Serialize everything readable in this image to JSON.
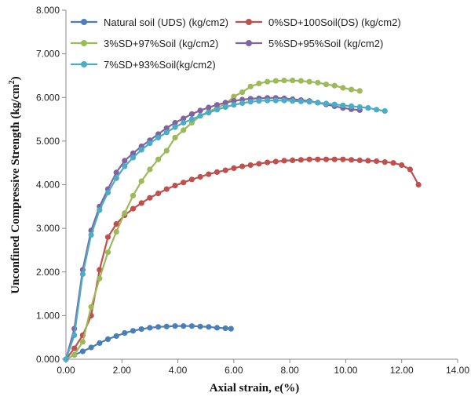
{
  "chart_data": {
    "type": "line",
    "title": "",
    "xlabel": "Axial strain, e(%)",
    "ylabel": "Unconfined Compressive Strength (kg/cm",
    "ylabel_sup": "2",
    "ylabel_end": ")",
    "xlim": [
      0,
      14
    ],
    "ylim": [
      0,
      8
    ],
    "x_ticks": [
      "0.00",
      "2.00",
      "4.00",
      "6.00",
      "8.00",
      "10.00",
      "12.00",
      "14.00"
    ],
    "y_ticks": [
      "0.000",
      "1.000",
      "2.000",
      "3.000",
      "4.000",
      "5.000",
      "6.000",
      "7.000",
      "8.000"
    ],
    "grid": false,
    "legend_position": "top",
    "series": [
      {
        "name": "Natural soil (UDS)  (kg/cm2)",
        "color": "#4a7ebb",
        "points": [
          [
            0,
            0
          ],
          [
            0.3,
            0.1
          ],
          [
            0.6,
            0.18
          ],
          [
            0.9,
            0.27
          ],
          [
            1.2,
            0.37
          ],
          [
            1.5,
            0.46
          ],
          [
            1.8,
            0.53
          ],
          [
            2.1,
            0.6
          ],
          [
            2.4,
            0.65
          ],
          [
            2.7,
            0.69
          ],
          [
            3.0,
            0.72
          ],
          [
            3.3,
            0.74
          ],
          [
            3.6,
            0.75
          ],
          [
            3.9,
            0.76
          ],
          [
            4.2,
            0.76
          ],
          [
            4.5,
            0.76
          ],
          [
            4.8,
            0.75
          ],
          [
            5.1,
            0.74
          ],
          [
            5.4,
            0.72
          ],
          [
            5.7,
            0.71
          ],
          [
            5.9,
            0.7
          ]
        ]
      },
      {
        "name": "0%SD+100Soil(DS) (kg/cm2)",
        "color": "#c0504d",
        "points": [
          [
            0,
            0
          ],
          [
            0.3,
            0.25
          ],
          [
            0.6,
            0.55
          ],
          [
            0.9,
            1.0
          ],
          [
            1.2,
            2.05
          ],
          [
            1.5,
            2.8
          ],
          [
            1.8,
            3.1
          ],
          [
            2.1,
            3.3
          ],
          [
            2.4,
            3.45
          ],
          [
            2.7,
            3.58
          ],
          [
            3.0,
            3.7
          ],
          [
            3.3,
            3.8
          ],
          [
            3.6,
            3.9
          ],
          [
            3.9,
            3.98
          ],
          [
            4.2,
            4.05
          ],
          [
            4.5,
            4.12
          ],
          [
            4.8,
            4.18
          ],
          [
            5.1,
            4.24
          ],
          [
            5.4,
            4.29
          ],
          [
            5.7,
            4.33
          ],
          [
            6.0,
            4.38
          ],
          [
            6.3,
            4.42
          ],
          [
            6.6,
            4.45
          ],
          [
            6.9,
            4.48
          ],
          [
            7.2,
            4.51
          ],
          [
            7.5,
            4.53
          ],
          [
            7.8,
            4.55
          ],
          [
            8.1,
            4.56
          ],
          [
            8.4,
            4.57
          ],
          [
            8.7,
            4.58
          ],
          [
            9.0,
            4.58
          ],
          [
            9.3,
            4.58
          ],
          [
            9.6,
            4.58
          ],
          [
            9.9,
            4.58
          ],
          [
            10.2,
            4.57
          ],
          [
            10.5,
            4.56
          ],
          [
            10.8,
            4.55
          ],
          [
            11.1,
            4.54
          ],
          [
            11.4,
            4.52
          ],
          [
            11.7,
            4.5
          ],
          [
            12.0,
            4.45
          ],
          [
            12.3,
            4.35
          ],
          [
            12.6,
            4.0
          ]
        ]
      },
      {
        "name": "3%SD+97%Soil (kg/cm2)",
        "color": "#9bbb59",
        "points": [
          [
            0,
            0
          ],
          [
            0.3,
            0.1
          ],
          [
            0.6,
            0.4
          ],
          [
            0.9,
            1.2
          ],
          [
            1.2,
            1.85
          ],
          [
            1.5,
            2.45
          ],
          [
            1.8,
            2.92
          ],
          [
            2.1,
            3.35
          ],
          [
            2.4,
            3.75
          ],
          [
            2.7,
            4.08
          ],
          [
            3.0,
            4.35
          ],
          [
            3.3,
            4.58
          ],
          [
            3.6,
            4.78
          ],
          [
            3.9,
            5.08
          ],
          [
            4.2,
            5.25
          ],
          [
            4.5,
            5.42
          ],
          [
            4.8,
            5.58
          ],
          [
            5.1,
            5.68
          ],
          [
            5.4,
            5.76
          ],
          [
            5.7,
            5.85
          ],
          [
            6.0,
            6.02
          ],
          [
            6.3,
            6.12
          ],
          [
            6.6,
            6.25
          ],
          [
            6.9,
            6.32
          ],
          [
            7.2,
            6.36
          ],
          [
            7.5,
            6.38
          ],
          [
            7.8,
            6.39
          ],
          [
            8.1,
            6.39
          ],
          [
            8.4,
            6.38
          ],
          [
            8.7,
            6.36
          ],
          [
            9.0,
            6.34
          ],
          [
            9.3,
            6.3
          ],
          [
            9.6,
            6.27
          ],
          [
            9.9,
            6.22
          ],
          [
            10.2,
            6.18
          ],
          [
            10.5,
            6.15
          ]
        ]
      },
      {
        "name": "5%SD+95%Soil (kg/cm2)",
        "color": "#8064a2",
        "points": [
          [
            0,
            0
          ],
          [
            0.3,
            0.7
          ],
          [
            0.6,
            2.05
          ],
          [
            0.9,
            2.95
          ],
          [
            1.2,
            3.5
          ],
          [
            1.5,
            3.9
          ],
          [
            1.8,
            4.28
          ],
          [
            2.1,
            4.55
          ],
          [
            2.4,
            4.72
          ],
          [
            2.7,
            4.88
          ],
          [
            3.0,
            5.02
          ],
          [
            3.3,
            5.16
          ],
          [
            3.6,
            5.3
          ],
          [
            3.9,
            5.42
          ],
          [
            4.2,
            5.52
          ],
          [
            4.5,
            5.62
          ],
          [
            4.8,
            5.7
          ],
          [
            5.1,
            5.77
          ],
          [
            5.4,
            5.83
          ],
          [
            5.7,
            5.88
          ],
          [
            6.0,
            5.92
          ],
          [
            6.3,
            5.95
          ],
          [
            6.6,
            5.97
          ],
          [
            6.9,
            5.98
          ],
          [
            7.2,
            5.99
          ],
          [
            7.5,
            5.99
          ],
          [
            7.8,
            5.98
          ],
          [
            8.1,
            5.96
          ],
          [
            8.4,
            5.94
          ],
          [
            8.7,
            5.92
          ],
          [
            9.0,
            5.88
          ],
          [
            9.3,
            5.84
          ],
          [
            9.6,
            5.8
          ],
          [
            9.9,
            5.76
          ],
          [
            10.2,
            5.73
          ],
          [
            10.5,
            5.71
          ]
        ]
      },
      {
        "name": "7%SD+93%Soil(kg/cm2)",
        "color": "#4bacc6",
        "points": [
          [
            0,
            0
          ],
          [
            0.3,
            0.55
          ],
          [
            0.6,
            1.95
          ],
          [
            0.9,
            2.85
          ],
          [
            1.2,
            3.42
          ],
          [
            1.5,
            3.82
          ],
          [
            1.8,
            4.15
          ],
          [
            2.1,
            4.42
          ],
          [
            2.4,
            4.62
          ],
          [
            2.7,
            4.8
          ],
          [
            3.0,
            4.95
          ],
          [
            3.3,
            5.08
          ],
          [
            3.6,
            5.2
          ],
          [
            3.9,
            5.32
          ],
          [
            4.2,
            5.42
          ],
          [
            4.5,
            5.5
          ],
          [
            4.8,
            5.58
          ],
          [
            5.1,
            5.65
          ],
          [
            5.4,
            5.72
          ],
          [
            5.7,
            5.78
          ],
          [
            6.0,
            5.83
          ],
          [
            6.3,
            5.87
          ],
          [
            6.6,
            5.9
          ],
          [
            6.9,
            5.92
          ],
          [
            7.2,
            5.93
          ],
          [
            7.5,
            5.93
          ],
          [
            7.8,
            5.93
          ],
          [
            8.1,
            5.92
          ],
          [
            8.4,
            5.91
          ],
          [
            8.7,
            5.9
          ],
          [
            9.0,
            5.88
          ],
          [
            9.3,
            5.86
          ],
          [
            9.6,
            5.84
          ],
          [
            9.9,
            5.82
          ],
          [
            10.2,
            5.8
          ],
          [
            10.5,
            5.78
          ],
          [
            10.8,
            5.76
          ],
          [
            11.1,
            5.72
          ],
          [
            11.4,
            5.69
          ]
        ]
      }
    ]
  }
}
